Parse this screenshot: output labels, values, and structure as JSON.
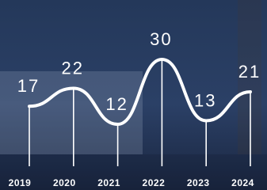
{
  "chart_data": {
    "type": "line",
    "categories": [
      "2019",
      "2020",
      "2021",
      "2022",
      "2023",
      "2024"
    ],
    "values": [
      17,
      22,
      12,
      30,
      13,
      21
    ],
    "color": "#ffffff"
  }
}
